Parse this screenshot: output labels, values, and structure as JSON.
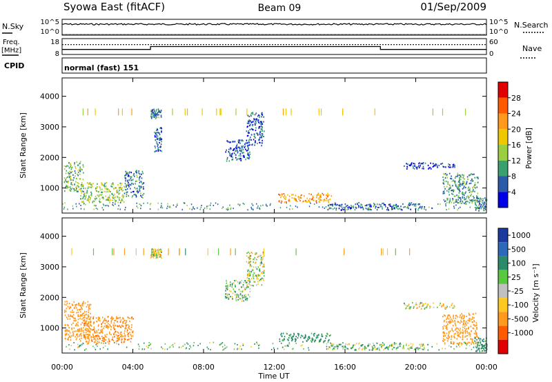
{
  "header": {
    "station": "Syowa East (fitACF)",
    "beam": "Beam 09",
    "date": "01/Sep/2009"
  },
  "top_panels": {
    "nsky_label": "N.Sky",
    "nsearch_label": "N.Search",
    "noise_ticks_left": [
      "10^5",
      "10^0"
    ],
    "noise_ticks_right": [
      "10^5",
      "10^0"
    ],
    "freq_label_1": "Freq.",
    "freq_label_2": "[MHz]",
    "freq_ticks": [
      "18",
      "8"
    ],
    "nave_ticks": [
      "60",
      "0"
    ],
    "nave_label": "Nave",
    "cpid_label": "CPID",
    "cpid_value": "normal (fast) 151"
  },
  "panels": {
    "power": {
      "ylabel": "Slant Range [km]",
      "cbar_label": "Power [dB]",
      "cbar_ticks": [
        "28",
        "24",
        "20",
        "16",
        "12",
        "8",
        "4"
      ],
      "cbar_colors": [
        "#e00000",
        "#ff5a00",
        "#ff9a1c",
        "#f0c800",
        "#9ad040",
        "#3aa070",
        "#2a5aa8",
        "#0000e8"
      ]
    },
    "velocity": {
      "ylabel": "Slant Range [km]",
      "cbar_label": "Velocity [m s⁻¹]",
      "cbar_ticks": [
        "1000",
        "500",
        "100",
        "25",
        "-25",
        "-100",
        "-500",
        "-1000"
      ],
      "cbar_colors": [
        "#1a3aa0",
        "#2a6ab8",
        "#2a8a6a",
        "#58c840",
        "#c0c0c0",
        "#ffc820",
        "#ff9a1c",
        "#ff5a00",
        "#e00000"
      ]
    }
  },
  "xaxis": {
    "label": "Time UT",
    "ticks": [
      "00:00",
      "04:00",
      "08:00",
      "12:00",
      "16:00",
      "20:00",
      "00:00"
    ]
  },
  "chart_data": {
    "type": "heatmap",
    "title": "Syowa East (fitACF)",
    "subtitle": "Beam 09",
    "date": "01/Sep/2009",
    "xlabel": "Time UT",
    "x_range_hours": [
      0,
      24
    ],
    "x_ticks": [
      "00:00",
      "04:00",
      "08:00",
      "12:00",
      "16:00",
      "20:00",
      "00:00"
    ],
    "ylabel": "Slant Range [km]",
    "y_range_km": [
      180,
      4600
    ],
    "y_ticks": [
      1000,
      2000,
      3000,
      4000
    ],
    "frequency_MHz": {
      "ylim": [
        8,
        18
      ],
      "segments": [
        {
          "from_hr": 0,
          "to_hr": 5,
          "value": 11
        },
        {
          "from_hr": 5,
          "to_hr": 18,
          "value": 13
        },
        {
          "from_hr": 18,
          "to_hr": 24,
          "value": 11
        }
      ]
    },
    "nave": {
      "ylim": [
        0,
        60
      ],
      "typical": 38
    },
    "power_panel": {
      "colorbar": "Power [dB]",
      "levels": [
        4,
        8,
        12,
        16,
        20,
        24,
        28
      ],
      "blobs": [
        {
          "t0": 0.1,
          "t1": 1.2,
          "r0": 900,
          "r1": 1900,
          "power": 12
        },
        {
          "t0": 1.0,
          "t1": 3.5,
          "r0": 550,
          "r1": 1200,
          "power": 14
        },
        {
          "t0": 3.5,
          "t1": 4.6,
          "r0": 700,
          "r1": 1600,
          "power": 8
        },
        {
          "t0": 5.0,
          "t1": 5.6,
          "r0": 3300,
          "r1": 3600,
          "power": 8
        },
        {
          "t0": 5.2,
          "t1": 5.6,
          "r0": 2200,
          "r1": 3000,
          "power": 6
        },
        {
          "t0": 9.2,
          "t1": 10.6,
          "r0": 1900,
          "r1": 2600,
          "power": 6
        },
        {
          "t0": 10.4,
          "t1": 11.4,
          "r0": 2400,
          "r1": 3500,
          "power": 6
        },
        {
          "t0": 12.2,
          "t1": 15.2,
          "r0": 550,
          "r1": 850,
          "power": 22
        },
        {
          "t0": 15.0,
          "t1": 20.5,
          "r0": 300,
          "r1": 500,
          "power": 6
        },
        {
          "t0": 19.3,
          "t1": 22.2,
          "r0": 1650,
          "r1": 1850,
          "power": 4
        },
        {
          "t0": 21.5,
          "t1": 23.5,
          "r0": 500,
          "r1": 1500,
          "power": 10
        },
        {
          "t0": 23.3,
          "t1": 24.0,
          "r0": 250,
          "r1": 700,
          "power": 8
        }
      ]
    },
    "velocity_panel": {
      "colorbar": "Velocity [m s-1]",
      "levels": [
        1000,
        500,
        100,
        25,
        -25,
        -100,
        -500,
        -1000
      ],
      "blobs": [
        {
          "t0": 0.1,
          "t1": 1.6,
          "r0": 600,
          "r1": 1900,
          "velocity": -300
        },
        {
          "t0": 1.2,
          "t1": 4.0,
          "r0": 500,
          "r1": 1400,
          "velocity": -400
        },
        {
          "t0": 5.0,
          "t1": 5.6,
          "r0": 3300,
          "r1": 3600,
          "velocity": 0
        },
        {
          "t0": 9.2,
          "t1": 10.6,
          "r0": 1900,
          "r1": 2600,
          "velocity": 60
        },
        {
          "t0": 10.4,
          "t1": 11.4,
          "r0": 2400,
          "r1": 3500,
          "velocity": 0
        },
        {
          "t0": 12.2,
          "t1": 15.2,
          "r0": 550,
          "r1": 850,
          "velocity": 200
        },
        {
          "t0": 15.0,
          "t1": 20.5,
          "r0": 300,
          "r1": 500,
          "velocity": 60
        },
        {
          "t0": 19.3,
          "t1": 22.2,
          "r0": 1650,
          "r1": 1850,
          "velocity": 0
        },
        {
          "t0": 21.5,
          "t1": 23.5,
          "r0": 500,
          "r1": 1500,
          "velocity": -300
        },
        {
          "t0": 23.3,
          "t1": 24.0,
          "r0": 250,
          "r1": 700,
          "velocity": 200
        }
      ]
    }
  }
}
